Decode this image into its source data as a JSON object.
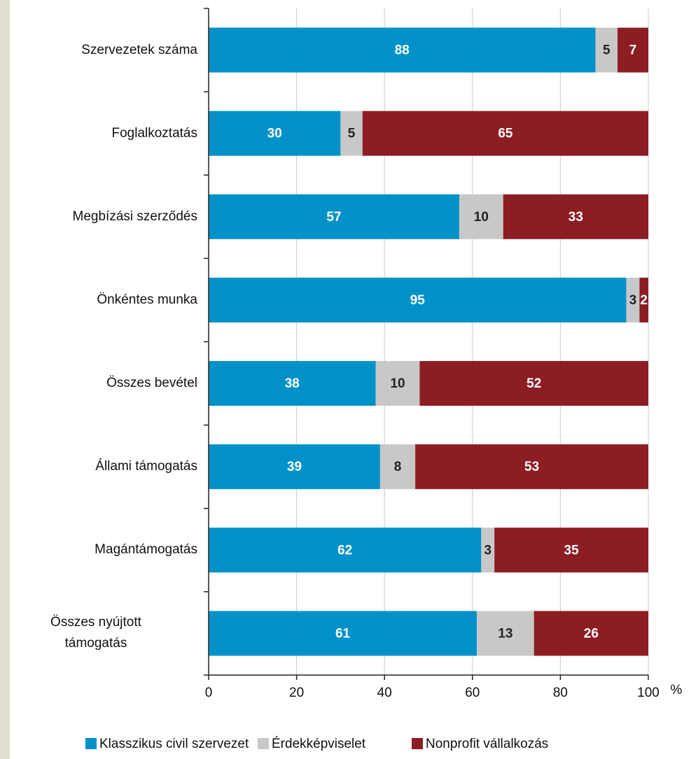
{
  "chart_data": {
    "type": "stacked_bar_horizontal",
    "categories": [
      "Szervezetek száma",
      "Foglalkoztatás",
      "Megbízási szerződés",
      "Önkéntes munka",
      "Összes bevétel",
      "Állami támogatás",
      "Magántámogatás",
      "Összes nyújtott támogatás"
    ],
    "series": [
      {
        "name": "Klasszikus civil szervezet",
        "color": "#0091c9",
        "values": [
          88,
          30,
          57,
          95,
          38,
          39,
          62,
          61
        ]
      },
      {
        "name": "Érdekképviselet",
        "color": "#c8c8c8",
        "values": [
          5,
          5,
          10,
          3,
          10,
          8,
          3,
          13
        ]
      },
      {
        "name": "Nonprofit vállalkozás",
        "color": "#8c1d22",
        "values": [
          7,
          65,
          33,
          2,
          52,
          53,
          35,
          26
        ]
      }
    ],
    "xlim": [
      0,
      100
    ],
    "xticks": [
      0,
      20,
      40,
      60,
      80,
      100
    ],
    "x_unit": "%",
    "grid": true
  }
}
